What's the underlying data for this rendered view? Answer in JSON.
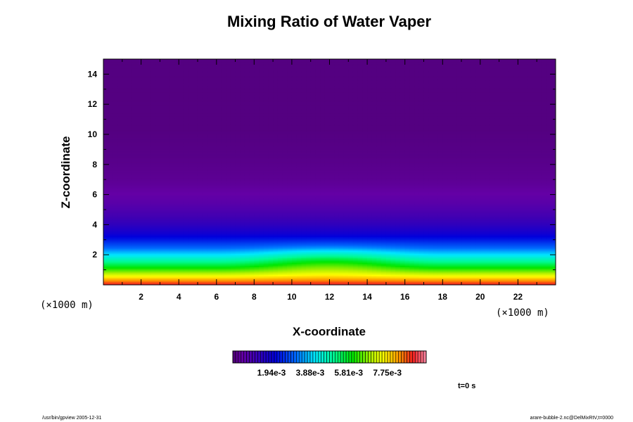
{
  "chart_data": {
    "type": "heatmap",
    "title": "Mixing Ratio of Water Vaper",
    "xlabel": "X-coordinate",
    "ylabel": "Z-coordinate",
    "x_unit": "(×1000 m)",
    "y_unit": "(×1000 m)",
    "xlim": [
      0,
      24
    ],
    "ylim": [
      0,
      15
    ],
    "x_ticks": [
      2,
      4,
      6,
      8,
      10,
      12,
      14,
      16,
      18,
      20,
      22
    ],
    "y_ticks": [
      2,
      4,
      6,
      8,
      10,
      12,
      14
    ],
    "field": {
      "z_levels": [
        0,
        0.5,
        1.0,
        1.5,
        2.0,
        2.5,
        3.0,
        3.5,
        4.0,
        4.5,
        5.0,
        5.5,
        6.0,
        6.5,
        7.0,
        8.5,
        10.3,
        15
      ],
      "values": [
        0.0092,
        0.0078,
        0.0064,
        0.0052,
        0.0041,
        0.0031,
        0.0024,
        0.0018,
        0.0014,
        0.0011,
        0.00085,
        0.00065,
        0.0005,
        0.0004,
        0.0003,
        0.00018,
        0.0001,
        0.0001
      ],
      "bubble_center_x": 12,
      "bubble_halfwidth_x": 6,
      "bubble_amplitude": 0.0009
    },
    "colorbar": {
      "min": 0,
      "max": 0.0097,
      "tick_values": [
        0.00194,
        0.00388,
        0.00581,
        0.00775
      ],
      "tick_labels": [
        "1.94e-3",
        "3.88e-3",
        "5.81e-3",
        "7.75e-3"
      ]
    },
    "time_label": "t=0 s",
    "footer_left": "/usr/bin/gpview 2005-12-31",
    "footer_right": "arare-bubble-2.nc@DelMixRtV,t=0000"
  }
}
